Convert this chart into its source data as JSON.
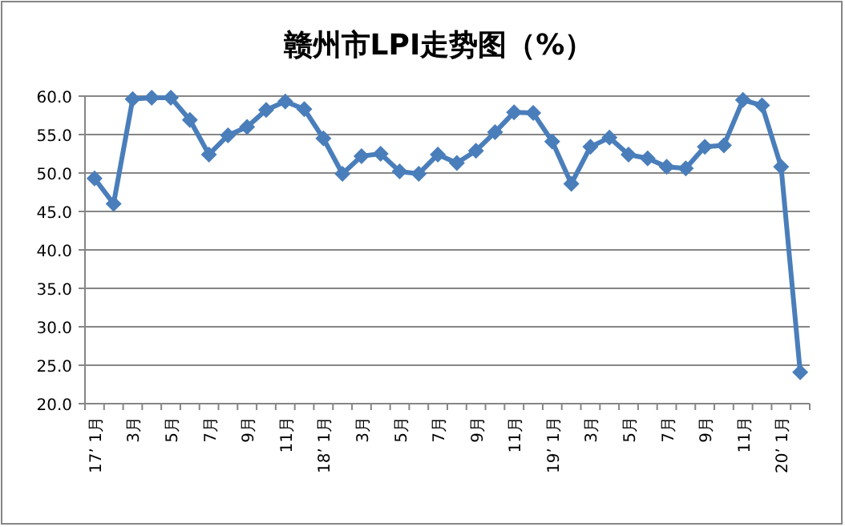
{
  "chart_data": {
    "type": "line",
    "title": "赣州市LPI走势图（%）",
    "categories": [
      "17’ 1月",
      null,
      "3月",
      null,
      "5月",
      null,
      "7月",
      null,
      "9月",
      null,
      "11月",
      null,
      "18’ 1月",
      null,
      "3月",
      null,
      "5月",
      null,
      "7月",
      null,
      "9月",
      null,
      "11月",
      null,
      "19’ 1月",
      null,
      "3月",
      null,
      "5月",
      null,
      "7月",
      null,
      "9月",
      null,
      "11月",
      null,
      "20’ 1月",
      null
    ],
    "series": [
      {
        "color": "#4a7ebb",
        "values": [
          49.3,
          46.0,
          59.6,
          59.8,
          59.8,
          56.9,
          52.4,
          54.9,
          56.0,
          58.2,
          59.3,
          58.3,
          54.5,
          49.9,
          52.2,
          52.5,
          50.2,
          49.9,
          52.4,
          51.3,
          52.9,
          55.3,
          57.9,
          57.8,
          54.1,
          48.6,
          53.4,
          54.6,
          52.4,
          51.9,
          50.8,
          50.6,
          53.4,
          53.6,
          59.5,
          58.8,
          50.8,
          24.1
        ]
      }
    ],
    "ylim": [
      20,
      60
    ],
    "yticks": [
      {
        "value": 20,
        "label": "20.0"
      },
      {
        "value": 25,
        "label": "25.0"
      },
      {
        "value": 30,
        "label": "30.0"
      },
      {
        "value": 35,
        "label": "35.0"
      },
      {
        "value": 40,
        "label": "40.0"
      },
      {
        "value": 45,
        "label": "45.0"
      },
      {
        "value": 50,
        "label": "50.0"
      },
      {
        "value": 55,
        "label": "55.0"
      },
      {
        "value": 60,
        "label": "60.0"
      }
    ],
    "grid": "y",
    "marker": "diamond",
    "line_style": "solid"
  }
}
